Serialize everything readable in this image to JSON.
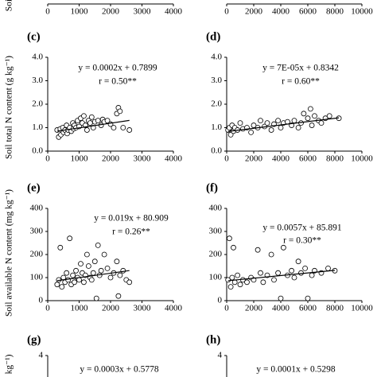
{
  "chart_data": [
    {
      "type": "axis",
      "ylabel": "Soil",
      "xlim": [
        0,
        4000
      ],
      "xticks": [
        0,
        1000,
        2000,
        3000,
        4000
      ]
    },
    {
      "type": "axis",
      "xlim": [
        0,
        10000
      ],
      "xticks": [
        0,
        2000,
        4000,
        6000,
        8000,
        10000
      ]
    },
    {
      "type": "scatter",
      "panel": "(c)",
      "ylabel": "Soil total N content (g kg⁻¹)",
      "equation": "y = 0.0002x + 0.7899",
      "r": "r = 0.50**",
      "xlim": [
        0,
        4000
      ],
      "xticks": [
        0,
        1000,
        2000,
        3000,
        4000
      ],
      "ylim": [
        0,
        4
      ],
      "yticks": [
        {
          "value": 0,
          "label": "0.0"
        },
        {
          "value": 1,
          "label": "1.0"
        },
        {
          "value": 2,
          "label": "2.0"
        },
        {
          "value": 3,
          "label": "3.0"
        },
        {
          "value": 4,
          "label": "4.0"
        }
      ],
      "x": [
        300,
        350,
        400,
        420,
        480,
        500,
        550,
        600,
        620,
        650,
        700,
        750,
        800,
        820,
        850,
        900,
        950,
        1000,
        1050,
        1100,
        1150,
        1200,
        1250,
        1300,
        1350,
        1400,
        1450,
        1500,
        1600,
        1700,
        1750,
        1800,
        1900,
        2000,
        2100,
        2200,
        2250,
        2300,
        2400,
        2600
      ],
      "y": [
        0.9,
        0.6,
        0.95,
        0.7,
        1.0,
        0.8,
        0.9,
        1.1,
        0.75,
        0.9,
        1.0,
        0.85,
        1.2,
        0.95,
        1.1,
        1.0,
        1.3,
        1.05,
        1.4,
        1.2,
        1.5,
        1.1,
        0.9,
        1.3,
        1.2,
        1.45,
        1.0,
        1.25,
        1.3,
        1.1,
        1.35,
        1.25,
        1.3,
        1.15,
        1.0,
        1.6,
        1.85,
        1.7,
        1.0,
        0.9
      ],
      "trendline": {
        "x": [
          300,
          2600
        ],
        "y": [
          0.85,
          1.31
        ]
      }
    },
    {
      "type": "scatter",
      "panel": "(d)",
      "equation": "y = 7E-05x + 0.8342",
      "r": "r = 0.60**",
      "xlim": [
        0,
        10000
      ],
      "xticks": [
        0,
        2000,
        4000,
        6000,
        8000,
        10000
      ],
      "ylim": [
        0,
        4
      ],
      "yticks": [
        {
          "value": 0,
          "label": "0.0"
        },
        {
          "value": 1,
          "label": "1.0"
        },
        {
          "value": 2,
          "label": "2.0"
        },
        {
          "value": 3,
          "label": "3.0"
        },
        {
          "value": 4,
          "label": "4.0"
        }
      ],
      "x": [
        100,
        200,
        300,
        400,
        500,
        600,
        800,
        1000,
        1200,
        1500,
        1800,
        2000,
        2300,
        2500,
        2800,
        3000,
        3300,
        3500,
        3800,
        4000,
        4200,
        4500,
        4800,
        5000,
        5300,
        5500,
        5700,
        6000,
        6200,
        6300,
        6500,
        6800,
        7000,
        7300,
        7600,
        8300
      ],
      "y": [
        0.9,
        1.0,
        0.7,
        1.1,
        0.85,
        1.0,
        0.9,
        1.2,
        0.95,
        1.0,
        0.8,
        1.1,
        1.0,
        1.3,
        1.05,
        1.2,
        0.9,
        1.15,
        1.3,
        1.0,
        1.2,
        1.25,
        1.1,
        1.3,
        1.0,
        1.2,
        1.6,
        1.4,
        1.8,
        1.1,
        1.5,
        1.3,
        1.2,
        1.4,
        1.5,
        1.4
      ],
      "trendline": {
        "x": [
          100,
          8300
        ],
        "y": [
          0.84,
          1.42
        ]
      }
    },
    {
      "type": "scatter",
      "panel": "(e)",
      "ylabel": "Soil available N content (mg kg⁻¹)",
      "equation": "y = 0.019x + 80.909",
      "r": "r = 0.26**",
      "xlim": [
        0,
        4000
      ],
      "xticks": [
        0,
        1000,
        2000,
        3000,
        4000
      ],
      "ylim": [
        0,
        400
      ],
      "yticks": [
        0,
        100,
        200,
        300,
        400
      ],
      "x": [
        300,
        350,
        400,
        450,
        500,
        550,
        600,
        650,
        700,
        750,
        800,
        850,
        900,
        950,
        1000,
        1050,
        1100,
        1150,
        1200,
        1250,
        1300,
        1350,
        1400,
        1450,
        1500,
        1550,
        1600,
        1650,
        1700,
        1800,
        1900,
        2000,
        2100,
        2200,
        2250,
        2300,
        2400,
        2500,
        2600
      ],
      "y": [
        70,
        90,
        230,
        60,
        100,
        80,
        120,
        90,
        270,
        70,
        110,
        80,
        130,
        100,
        90,
        160,
        120,
        80,
        110,
        200,
        150,
        100,
        90,
        120,
        170,
        10,
        240,
        110,
        130,
        200,
        140,
        100,
        120,
        170,
        20,
        110,
        130,
        90,
        80
      ],
      "trendline": {
        "x": [
          300,
          2600
        ],
        "y": [
          86.6,
          130.3
        ]
      }
    },
    {
      "type": "scatter",
      "panel": "(f)",
      "equation": "y = 0.0057x + 85.891",
      "r": "r = 0.30**",
      "xlim": [
        0,
        10000
      ],
      "xticks": [
        0,
        2000,
        4000,
        6000,
        8000,
        10000
      ],
      "ylim": [
        0,
        400
      ],
      "yticks": [
        0,
        100,
        200,
        300,
        400
      ],
      "x": [
        100,
        200,
        300,
        400,
        500,
        600,
        800,
        1000,
        1200,
        1500,
        1800,
        2000,
        2300,
        2500,
        2700,
        3000,
        3300,
        3500,
        3800,
        4000,
        4200,
        4500,
        4800,
        5000,
        5300,
        5500,
        5800,
        6000,
        6300,
        6500,
        7000,
        7500,
        8000
      ],
      "y": [
        90,
        270,
        60,
        100,
        230,
        80,
        110,
        70,
        90,
        80,
        100,
        90,
        220,
        120,
        80,
        110,
        200,
        90,
        120,
        10,
        230,
        110,
        130,
        100,
        170,
        120,
        140,
        10,
        110,
        130,
        120,
        140,
        130
      ],
      "trendline": {
        "x": [
          100,
          8000
        ],
        "y": [
          86.5,
          131.5
        ]
      }
    },
    {
      "type": "scatter",
      "panel": "(g)",
      "ylabel": "kg⁻¹)",
      "equation": "y = 0.0003x + 0.5778",
      "ylim": [
        0,
        4
      ],
      "yticks": [
        4
      ]
    },
    {
      "type": "scatter",
      "panel": "(h)",
      "equation": "y = 0.0001x + 0.5298",
      "ylim": [
        0,
        4
      ],
      "yticks": [
        4
      ]
    }
  ]
}
